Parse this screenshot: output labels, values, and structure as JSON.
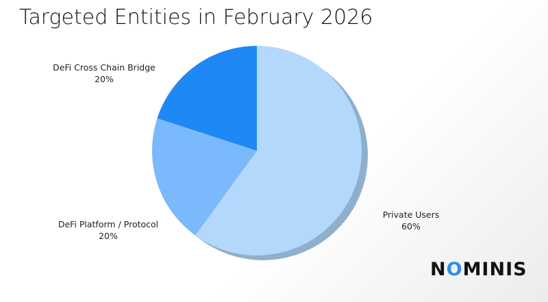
{
  "chart_data": {
    "type": "pie",
    "title": "Targeted Entities in February 2026",
    "slices": [
      {
        "label": "Private Users",
        "value": 60,
        "value_label": "60%",
        "color": "#b3d8fb"
      },
      {
        "label": "DeFi Platform / Protocol",
        "value": 20,
        "value_label": "20%",
        "color": "#7ab9fb"
      },
      {
        "label": "DeFi Cross Chain Bridge",
        "value": 20,
        "value_label": "20%",
        "color": "#1e88f5"
      }
    ],
    "shadow_color": "#8fb0cc",
    "start": "top",
    "direction": "clockwise"
  },
  "logo": {
    "text": "NOMINIS",
    "accent": "#2b8ef0"
  }
}
